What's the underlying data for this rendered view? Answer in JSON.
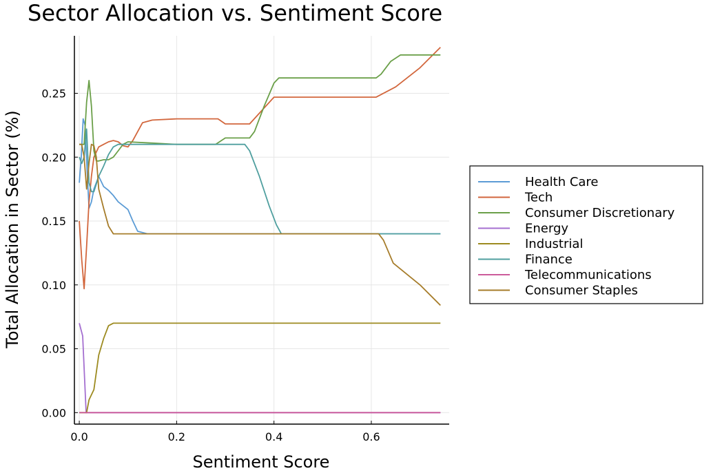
{
  "chart_data": {
    "type": "line",
    "title": "Sector Allocation vs. Sentiment Score",
    "xlabel": "Sentiment Score",
    "ylabel": "Total Allocation in Sector (%)",
    "xlim": [
      -0.01,
      0.76
    ],
    "ylim": [
      -0.009,
      0.295
    ],
    "xticks": [
      0.0,
      0.2,
      0.4,
      0.6
    ],
    "xtick_labels": [
      "0.0",
      "0.2",
      "0.4",
      "0.6"
    ],
    "yticks": [
      0.0,
      0.05,
      0.1,
      0.15,
      0.2,
      0.25
    ],
    "ytick_labels": [
      "0.00",
      "0.05",
      "0.10",
      "0.15",
      "0.20",
      "0.25"
    ],
    "grid": true,
    "legend_position": "right",
    "series": [
      {
        "name": "Health Care",
        "color": "#5b9bd5",
        "x": [
          0.0,
          0.004,
          0.008,
          0.012,
          0.016,
          0.02,
          0.025,
          0.03,
          0.04,
          0.05,
          0.06,
          0.07,
          0.08,
          0.09,
          0.1,
          0.11,
          0.12,
          0.14,
          0.2,
          0.3,
          0.4,
          0.5,
          0.6,
          0.742
        ],
        "y": [
          0.18,
          0.2,
          0.23,
          0.225,
          0.19,
          0.16,
          0.165,
          0.175,
          0.185,
          0.177,
          0.174,
          0.17,
          0.165,
          0.162,
          0.159,
          0.15,
          0.142,
          0.14,
          0.14,
          0.14,
          0.14,
          0.14,
          0.14,
          0.14
        ]
      },
      {
        "name": "Tech",
        "color": "#d2663c",
        "x": [
          0.0,
          0.005,
          0.01,
          0.015,
          0.02,
          0.025,
          0.03,
          0.04,
          0.05,
          0.06,
          0.07,
          0.08,
          0.09,
          0.1,
          0.11,
          0.13,
          0.15,
          0.2,
          0.25,
          0.285,
          0.3,
          0.35,
          0.4,
          0.45,
          0.5,
          0.55,
          0.61,
          0.65,
          0.7,
          0.742
        ],
        "y": [
          0.15,
          0.12,
          0.097,
          0.13,
          0.165,
          0.185,
          0.2,
          0.208,
          0.21,
          0.212,
          0.213,
          0.212,
          0.209,
          0.208,
          0.213,
          0.227,
          0.229,
          0.23,
          0.23,
          0.23,
          0.226,
          0.226,
          0.247,
          0.247,
          0.247,
          0.247,
          0.247,
          0.255,
          0.27,
          0.286
        ]
      },
      {
        "name": "Consumer Discretionary",
        "color": "#6a9f48",
        "x": [
          0.0,
          0.005,
          0.01,
          0.015,
          0.02,
          0.025,
          0.03,
          0.035,
          0.04,
          0.05,
          0.06,
          0.07,
          0.08,
          0.09,
          0.1,
          0.15,
          0.2,
          0.25,
          0.28,
          0.3,
          0.35,
          0.36,
          0.38,
          0.4,
          0.41,
          0.45,
          0.5,
          0.55,
          0.61,
          0.62,
          0.64,
          0.66,
          0.7,
          0.742
        ],
        "y": [
          0.21,
          0.21,
          0.21,
          0.243,
          0.26,
          0.24,
          0.205,
          0.197,
          0.197,
          0.198,
          0.198,
          0.2,
          0.205,
          0.21,
          0.212,
          0.211,
          0.21,
          0.21,
          0.21,
          0.215,
          0.215,
          0.22,
          0.24,
          0.258,
          0.262,
          0.262,
          0.262,
          0.262,
          0.262,
          0.265,
          0.275,
          0.28,
          0.28,
          0.28
        ]
      },
      {
        "name": "Energy",
        "color": "#a46fd0",
        "x": [
          0.0,
          0.007,
          0.014,
          0.03,
          0.1,
          0.2,
          0.3,
          0.4,
          0.5,
          0.6,
          0.742
        ],
        "y": [
          0.07,
          0.06,
          0.0,
          0.0,
          0.0,
          0.0,
          0.0,
          0.0,
          0.0,
          0.0,
          0.0
        ]
      },
      {
        "name": "Industrial",
        "color": "#9c8a1f",
        "x": [
          0.0,
          0.01,
          0.015,
          0.02,
          0.03,
          0.04,
          0.05,
          0.06,
          0.07,
          0.08,
          0.1,
          0.2,
          0.3,
          0.4,
          0.5,
          0.6,
          0.742
        ],
        "y": [
          0.0,
          0.0,
          0.0,
          0.01,
          0.018,
          0.045,
          0.058,
          0.068,
          0.07,
          0.07,
          0.07,
          0.07,
          0.07,
          0.07,
          0.07,
          0.07,
          0.07
        ]
      },
      {
        "name": "Finance",
        "color": "#4f9f9f",
        "x": [
          0.0,
          0.005,
          0.01,
          0.015,
          0.02,
          0.025,
          0.03,
          0.04,
          0.05,
          0.06,
          0.07,
          0.08,
          0.09,
          0.1,
          0.15,
          0.2,
          0.3,
          0.34,
          0.35,
          0.37,
          0.39,
          0.405,
          0.415,
          0.45,
          0.5,
          0.6,
          0.742
        ],
        "y": [
          0.2,
          0.195,
          0.2,
          0.222,
          0.18,
          0.173,
          0.173,
          0.185,
          0.193,
          0.202,
          0.208,
          0.21,
          0.21,
          0.21,
          0.21,
          0.21,
          0.21,
          0.21,
          0.205,
          0.185,
          0.162,
          0.147,
          0.14,
          0.14,
          0.14,
          0.14,
          0.14
        ]
      },
      {
        "name": "Telecommunications",
        "color": "#cc5b9a",
        "x": [
          0.0,
          0.1,
          0.2,
          0.3,
          0.4,
          0.5,
          0.6,
          0.742
        ],
        "y": [
          0.0,
          0.0,
          0.0,
          0.0,
          0.0,
          0.0,
          0.0,
          0.0
        ]
      },
      {
        "name": "Consumer Staples",
        "color": "#a67c2a",
        "x": [
          0.0,
          0.005,
          0.01,
          0.015,
          0.02,
          0.025,
          0.03,
          0.035,
          0.04,
          0.05,
          0.06,
          0.07,
          0.1,
          0.2,
          0.3,
          0.4,
          0.5,
          0.6,
          0.615,
          0.625,
          0.645,
          0.7,
          0.742
        ],
        "y": [
          0.21,
          0.21,
          0.2,
          0.175,
          0.195,
          0.21,
          0.209,
          0.2,
          0.175,
          0.16,
          0.146,
          0.14,
          0.14,
          0.14,
          0.14,
          0.14,
          0.14,
          0.14,
          0.14,
          0.135,
          0.117,
          0.1,
          0.084
        ]
      }
    ]
  }
}
